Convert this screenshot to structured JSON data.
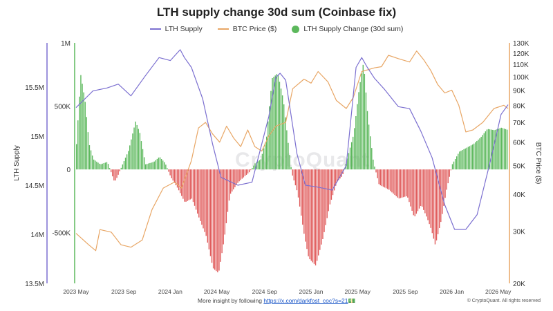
{
  "title": "LTH supply change 30d sum (Coinbase fix)",
  "legend": {
    "lth_supply": "LTH Supply",
    "btc_price": "BTC Price ($)",
    "lth_change": "LTH Supply Change (30d sum)"
  },
  "colors": {
    "lth_supply": "#7b6fd0",
    "btc_price": "#e8a665",
    "positive": "#5cb85c",
    "negative": "#e05a5a"
  },
  "watermark": "CryptoQuant",
  "footer": {
    "text": "More insight by following",
    "link": "https://x.com/darkfost_coc?s=21",
    "emoji": "💵"
  },
  "copyright": "© CryptoQuant. All rights reserved",
  "chart_data": {
    "type": "line",
    "title": "LTH supply change 30d sum (Coinbase fix)",
    "x_ticks": [
      "2023 May",
      "2023 Sep",
      "2024 Jan",
      "2024 May",
      "2024 Sep",
      "2025 Jan",
      "2025 May",
      "2025 Sep",
      "2026 Jan",
      "2026 May"
    ],
    "x_range": [
      2023.33,
      2026.4
    ],
    "left_outer_axis": {
      "label": "LTH Supply",
      "ticks": [
        "13.5M",
        "14M",
        "14.5M",
        "15M",
        "15.5M"
      ],
      "range": [
        13500000,
        15950000
      ]
    },
    "left_inner_axis": {
      "ticks": [
        "-500K",
        "0",
        "500K",
        "1M"
      ],
      "range": [
        -900000,
        1000000
      ]
    },
    "right_axis": {
      "label": "BTC Price ($)",
      "scale": "log",
      "ticks": [
        "20K",
        "30K",
        "40K",
        "50K",
        "60K",
        "70K",
        "80K",
        "90K",
        "100K",
        "110K",
        "120K",
        "130K"
      ],
      "range": [
        20000,
        130000
      ]
    },
    "series": [
      {
        "name": "LTH Supply",
        "axis": "left_outer",
        "points": [
          [
            2023.33,
            15.29
          ],
          [
            2023.45,
            15.46
          ],
          [
            2023.55,
            15.49
          ],
          [
            2023.63,
            15.53
          ],
          [
            2023.72,
            15.41
          ],
          [
            2023.82,
            15.61
          ],
          [
            2023.92,
            15.8
          ],
          [
            2024.0,
            15.77
          ],
          [
            2024.07,
            15.88
          ],
          [
            2024.1,
            15.8
          ],
          [
            2024.15,
            15.7
          ],
          [
            2024.23,
            15.38
          ],
          [
            2024.3,
            14.92
          ],
          [
            2024.36,
            14.58
          ],
          [
            2024.48,
            14.5
          ],
          [
            2024.58,
            14.53
          ],
          [
            2024.7,
            15.2
          ],
          [
            2024.75,
            15.6
          ],
          [
            2024.78,
            15.64
          ],
          [
            2024.82,
            15.57
          ],
          [
            2024.9,
            14.82
          ],
          [
            2024.96,
            14.5
          ],
          [
            2025.05,
            14.48
          ],
          [
            2025.15,
            14.45
          ],
          [
            2025.25,
            14.7
          ],
          [
            2025.32,
            15.7
          ],
          [
            2025.36,
            15.8
          ],
          [
            2025.4,
            15.7
          ],
          [
            2025.45,
            15.59
          ],
          [
            2025.52,
            15.48
          ],
          [
            2025.62,
            15.3
          ],
          [
            2025.7,
            15.28
          ],
          [
            2025.78,
            15.05
          ],
          [
            2025.86,
            14.78
          ],
          [
            2025.95,
            14.3
          ],
          [
            2026.02,
            14.05
          ],
          [
            2026.1,
            14.05
          ],
          [
            2026.18,
            14.2
          ],
          [
            2026.28,
            14.78
          ],
          [
            2026.35,
            15.22
          ],
          [
            2026.4,
            15.32
          ]
        ]
      },
      {
        "name": "BTC Price ($)",
        "axis": "right",
        "points": [
          [
            2023.33,
            29500
          ],
          [
            2023.42,
            27000
          ],
          [
            2023.47,
            25800
          ],
          [
            2023.5,
            30400
          ],
          [
            2023.58,
            29800
          ],
          [
            2023.65,
            27000
          ],
          [
            2023.72,
            26500
          ],
          [
            2023.8,
            28000
          ],
          [
            2023.87,
            35500
          ],
          [
            2023.95,
            42000
          ],
          [
            2024.03,
            44000
          ],
          [
            2024.08,
            42000
          ],
          [
            2024.15,
            52000
          ],
          [
            2024.2,
            67000
          ],
          [
            2024.25,
            70000
          ],
          [
            2024.3,
            64000
          ],
          [
            2024.35,
            60000
          ],
          [
            2024.4,
            68000
          ],
          [
            2024.45,
            62000
          ],
          [
            2024.5,
            58000
          ],
          [
            2024.55,
            66000
          ],
          [
            2024.6,
            58000
          ],
          [
            2024.65,
            56000
          ],
          [
            2024.7,
            63000
          ],
          [
            2024.75,
            68000
          ],
          [
            2024.82,
            70000
          ],
          [
            2024.87,
            91000
          ],
          [
            2024.95,
            98000
          ],
          [
            2025.0,
            95000
          ],
          [
            2025.05,
            104000
          ],
          [
            2025.12,
            96000
          ],
          [
            2025.18,
            83000
          ],
          [
            2025.25,
            78000
          ],
          [
            2025.3,
            85000
          ],
          [
            2025.36,
            104000
          ],
          [
            2025.45,
            107000
          ],
          [
            2025.5,
            108000
          ],
          [
            2025.55,
            118000
          ],
          [
            2025.62,
            115000
          ],
          [
            2025.7,
            112000
          ],
          [
            2025.75,
            122000
          ],
          [
            2025.8,
            114000
          ],
          [
            2025.85,
            105000
          ],
          [
            2025.9,
            94000
          ],
          [
            2025.95,
            88000
          ],
          [
            2026.0,
            90000
          ],
          [
            2026.05,
            80000
          ],
          [
            2026.1,
            65000
          ],
          [
            2026.15,
            66000
          ],
          [
            2026.22,
            70000
          ],
          [
            2026.3,
            78000
          ],
          [
            2026.37,
            80000
          ],
          [
            2026.4,
            78000
          ]
        ]
      },
      {
        "name": "LTH Supply Change (30d sum)",
        "type": "bar",
        "axis": "left_inner",
        "points": [
          [
            2023.33,
            200000
          ],
          [
            2023.36,
            750000
          ],
          [
            2023.39,
            550000
          ],
          [
            2023.42,
            200000
          ],
          [
            2023.45,
            80000
          ],
          [
            2023.5,
            40000
          ],
          [
            2023.55,
            60000
          ],
          [
            2023.6,
            -100000
          ],
          [
            2023.62,
            -60000
          ],
          [
            2023.65,
            20000
          ],
          [
            2023.7,
            150000
          ],
          [
            2023.75,
            380000
          ],
          [
            2023.78,
            290000
          ],
          [
            2023.82,
            40000
          ],
          [
            2023.88,
            60000
          ],
          [
            2023.92,
            100000
          ],
          [
            2023.96,
            50000
          ],
          [
            2024.0,
            -60000
          ],
          [
            2024.05,
            -150000
          ],
          [
            2024.1,
            -260000
          ],
          [
            2024.15,
            -230000
          ],
          [
            2024.2,
            -380000
          ],
          [
            2024.25,
            -520000
          ],
          [
            2024.3,
            -780000
          ],
          [
            2024.34,
            -820000
          ],
          [
            2024.38,
            -550000
          ],
          [
            2024.42,
            -200000
          ],
          [
            2024.48,
            -100000
          ],
          [
            2024.52,
            -60000
          ],
          [
            2024.56,
            -20000
          ],
          [
            2024.6,
            50000
          ],
          [
            2024.64,
            80000
          ],
          [
            2024.68,
            250000
          ],
          [
            2024.72,
            720000
          ],
          [
            2024.76,
            760000
          ],
          [
            2024.8,
            550000
          ],
          [
            2024.83,
            250000
          ],
          [
            2024.86,
            -30000
          ],
          [
            2024.9,
            -180000
          ],
          [
            2024.95,
            -530000
          ],
          [
            2024.98,
            -700000
          ],
          [
            2025.03,
            -760000
          ],
          [
            2025.08,
            -550000
          ],
          [
            2025.13,
            -280000
          ],
          [
            2025.18,
            -100000
          ],
          [
            2025.22,
            -50000
          ],
          [
            2025.25,
            70000
          ],
          [
            2025.3,
            280000
          ],
          [
            2025.34,
            650000
          ],
          [
            2025.37,
            850000
          ],
          [
            2025.4,
            420000
          ],
          [
            2025.44,
            60000
          ],
          [
            2025.48,
            -120000
          ],
          [
            2025.55,
            -160000
          ],
          [
            2025.62,
            -230000
          ],
          [
            2025.68,
            -210000
          ],
          [
            2025.73,
            -380000
          ],
          [
            2025.78,
            -280000
          ],
          [
            2025.82,
            -380000
          ],
          [
            2025.85,
            -470000
          ],
          [
            2025.88,
            -600000
          ],
          [
            2025.92,
            -410000
          ],
          [
            2025.96,
            -160000
          ],
          [
            2026.0,
            40000
          ],
          [
            2026.05,
            140000
          ],
          [
            2026.1,
            170000
          ],
          [
            2026.15,
            200000
          ],
          [
            2026.2,
            250000
          ],
          [
            2026.25,
            320000
          ],
          [
            2026.3,
            310000
          ],
          [
            2026.35,
            330000
          ],
          [
            2026.4,
            310000
          ]
        ]
      }
    ]
  }
}
